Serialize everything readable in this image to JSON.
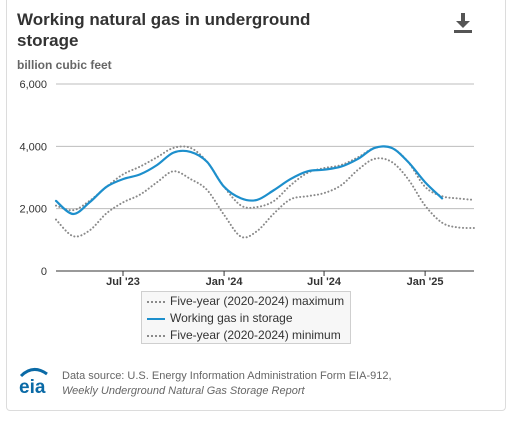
{
  "title": "Working natural gas in underground storage",
  "units_label": "billion cubic feet",
  "download_icon": "download-icon",
  "source_line1": "Data source: U.S. Energy Information Administration Form EIA-912,",
  "source_line2": "Weekly Underground Natural Gas Storage Report",
  "logo_text": "eia",
  "colors": {
    "working": "#1d8fcc",
    "range": "#8a8a8a",
    "grid": "#bdbdbd",
    "axis": "#333333",
    "logo": "#0a6aa6"
  },
  "legend": [
    {
      "label": "Five-year (2020-2024) maximum",
      "series": "max"
    },
    {
      "label": "Working gas in storage",
      "series": "working"
    },
    {
      "label": "Five-year (2020-2024) minimum",
      "series": "min"
    }
  ],
  "chart_data": {
    "type": "line",
    "title": "Working natural gas in underground storage",
    "ylabel": "billion cubic feet",
    "xlabel": "",
    "ylim": [
      0,
      6000
    ],
    "yticks": [
      0,
      2000,
      4000,
      6000
    ],
    "ytick_labels": [
      "0",
      "2,000",
      "4,000",
      "6,000"
    ],
    "xlim": [
      "2023-03-01",
      "2025-03-31"
    ],
    "xticks": [
      "2023-07-01",
      "2024-01-01",
      "2024-07-01",
      "2025-01-01"
    ],
    "xtick_labels": [
      "Jul '23",
      "Jan '24",
      "Jul '24",
      "Jan '25"
    ],
    "grid": "horizontal",
    "legend_position": "bottom",
    "series": [
      {
        "name": "Five-year (2020-2024) maximum",
        "key": "max",
        "style": "dotted",
        "x": [
          "2023-03-01",
          "2023-04-01",
          "2023-05-01",
          "2023-06-01",
          "2023-07-01",
          "2023-08-01",
          "2023-09-01",
          "2023-10-01",
          "2023-11-01",
          "2023-12-01",
          "2024-01-01",
          "2024-02-01",
          "2024-03-01",
          "2024-04-01",
          "2024-05-01",
          "2024-06-01",
          "2024-07-01",
          "2024-08-01",
          "2024-09-01",
          "2024-10-01",
          "2024-11-01",
          "2024-12-01",
          "2025-01-01",
          "2025-02-01",
          "2025-03-01",
          "2025-03-31"
        ],
        "y": [
          2100,
          1950,
          2250,
          2700,
          3100,
          3350,
          3650,
          3950,
          3950,
          3500,
          2700,
          2100,
          2050,
          2250,
          2750,
          3150,
          3300,
          3400,
          3650,
          3950,
          3950,
          3500,
          2700,
          2400,
          2330,
          2280
        ]
      },
      {
        "name": "Working gas in storage",
        "key": "working",
        "style": "solid",
        "x": [
          "2023-03-01",
          "2023-04-01",
          "2023-05-01",
          "2023-06-01",
          "2023-07-01",
          "2023-08-01",
          "2023-09-01",
          "2023-10-01",
          "2023-11-01",
          "2023-12-01",
          "2024-01-01",
          "2024-02-01",
          "2024-03-01",
          "2024-04-01",
          "2024-05-01",
          "2024-06-01",
          "2024-07-01",
          "2024-08-01",
          "2024-09-01",
          "2024-10-01",
          "2024-11-01",
          "2024-12-01",
          "2025-01-01",
          "2025-02-01"
        ],
        "y": [
          2250,
          1830,
          2200,
          2700,
          2950,
          3100,
          3400,
          3800,
          3820,
          3500,
          2700,
          2330,
          2280,
          2600,
          2950,
          3200,
          3250,
          3350,
          3600,
          3950,
          3950,
          3500,
          2850,
          2330
        ]
      },
      {
        "name": "Five-year (2020-2024) minimum",
        "key": "min",
        "style": "dotted",
        "x": [
          "2023-03-01",
          "2023-04-01",
          "2023-05-01",
          "2023-06-01",
          "2023-07-01",
          "2023-08-01",
          "2023-09-01",
          "2023-10-01",
          "2023-11-01",
          "2023-12-01",
          "2024-01-01",
          "2024-02-01",
          "2024-03-01",
          "2024-04-01",
          "2024-05-01",
          "2024-06-01",
          "2024-07-01",
          "2024-08-01",
          "2024-09-01",
          "2024-10-01",
          "2024-11-01",
          "2024-12-01",
          "2025-01-01",
          "2025-02-01",
          "2025-03-01",
          "2025-03-31"
        ],
        "y": [
          1650,
          1120,
          1300,
          1850,
          2200,
          2450,
          2850,
          3200,
          2950,
          2600,
          1800,
          1100,
          1280,
          1850,
          2300,
          2400,
          2500,
          2750,
          3250,
          3600,
          3500,
          2950,
          2100,
          1550,
          1400,
          1380
        ]
      }
    ]
  }
}
